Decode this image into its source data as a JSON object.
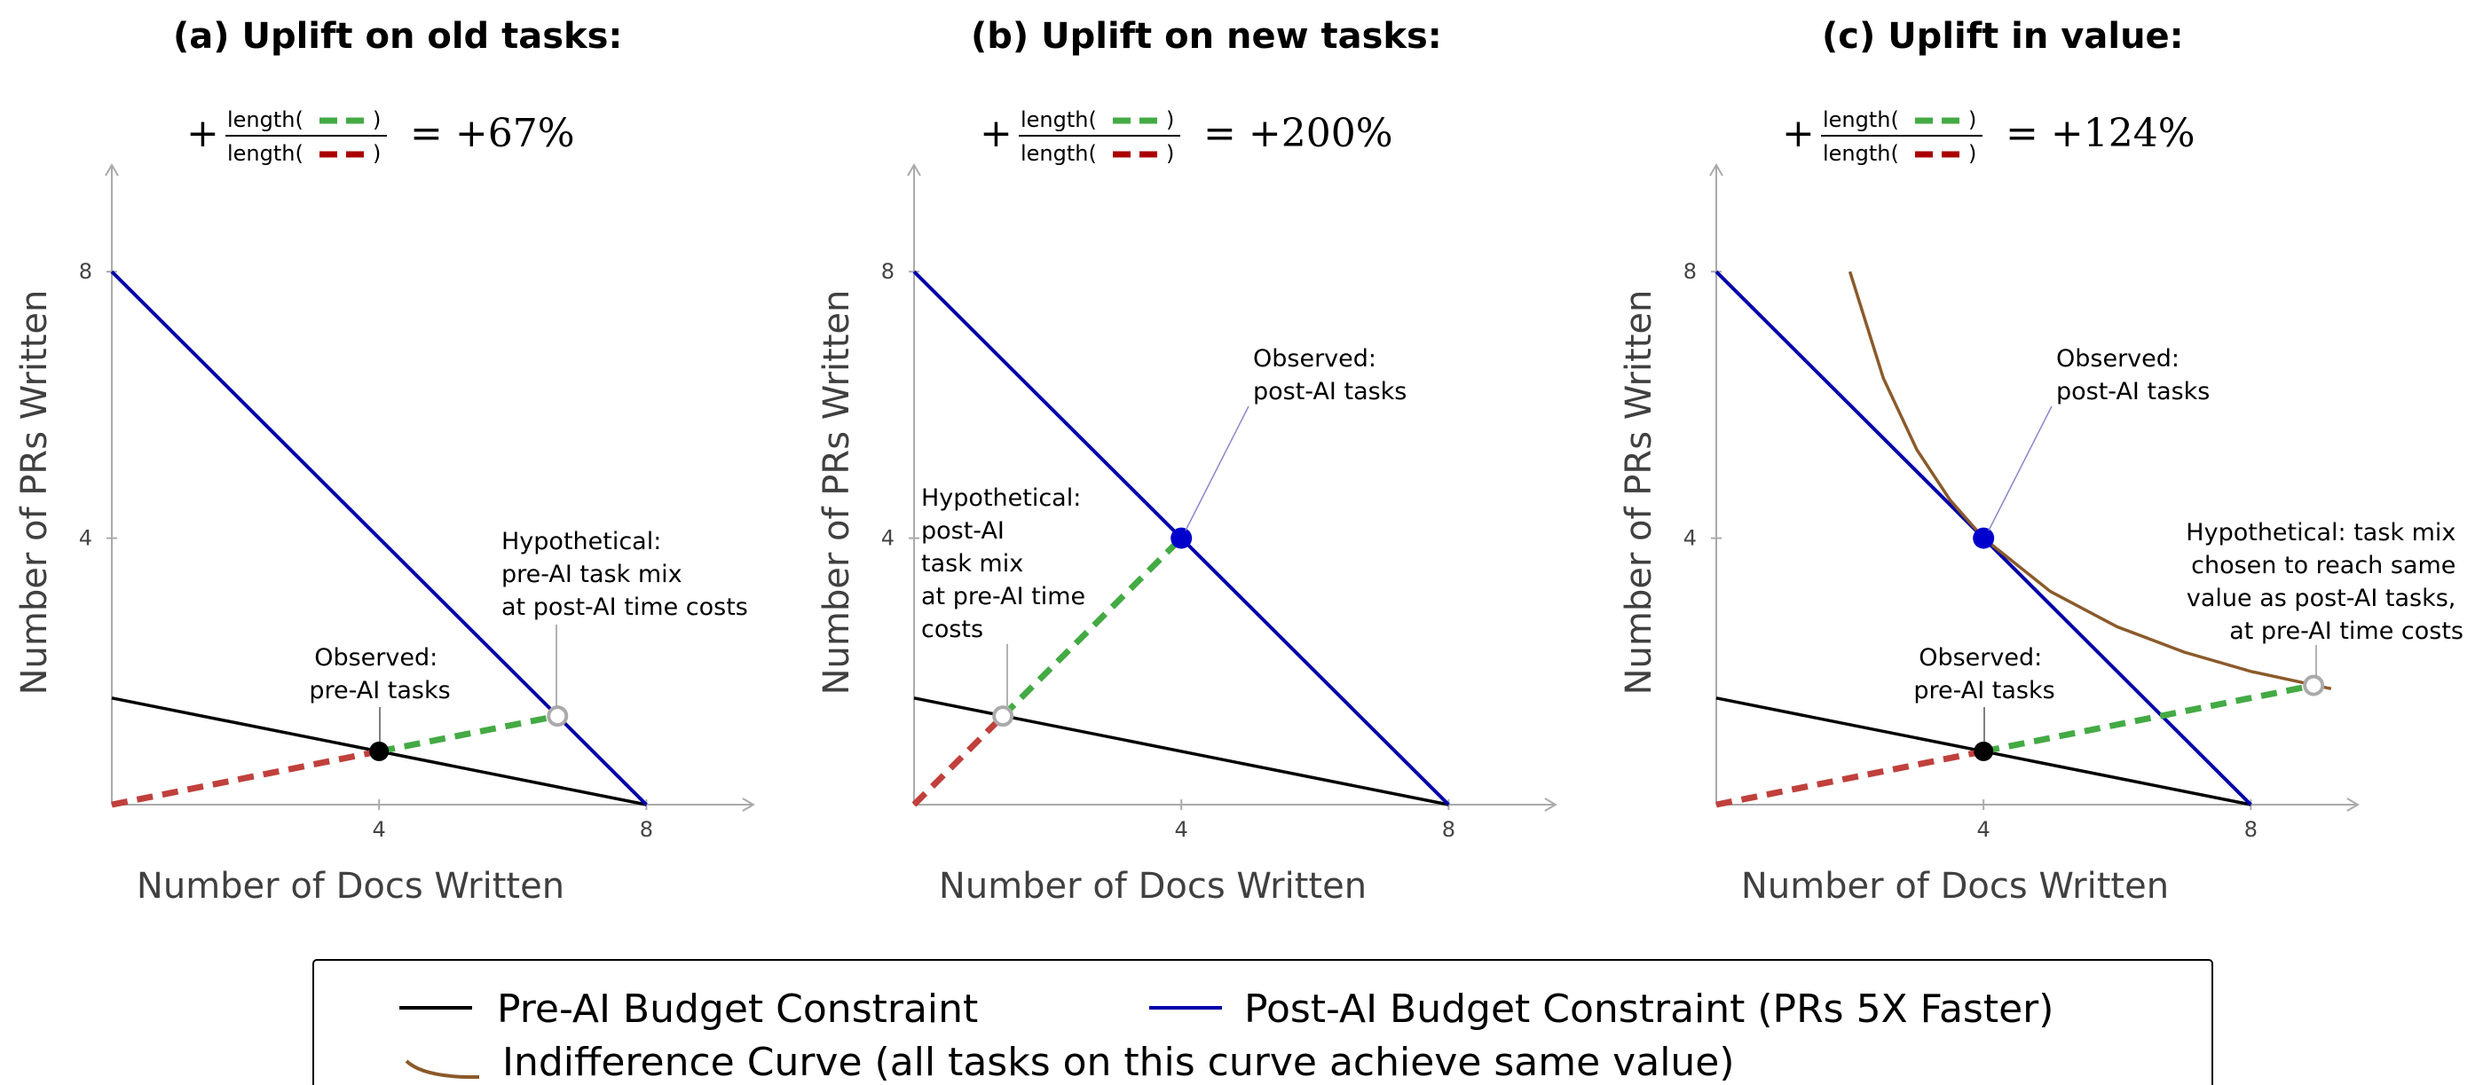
{
  "chart_data": [
    {
      "type": "line",
      "title": "(a) Uplift on old tasks:",
      "formula": {
        "prefix": "+",
        "numerator": "length(",
        "denominator": "length(",
        "close": ")",
        "result": "= +67%"
      },
      "xlabel": "Number of Docs Written",
      "ylabel": "Number of PRs Written",
      "xticks": [
        "4",
        "8"
      ],
      "yticks": [
        "4",
        "8"
      ],
      "xlim": [
        0,
        9.6
      ],
      "ylim": [
        0,
        9.6
      ],
      "series": [
        {
          "name": "Pre-AI Budget Constraint",
          "color": "#000000",
          "x": [
            0,
            8
          ],
          "y": [
            1.6,
            0
          ]
        },
        {
          "name": "Post-AI Budget Constraint (PRs 5X Faster)",
          "color": "#0000aa",
          "x": [
            0,
            8
          ],
          "y": [
            8,
            0
          ]
        },
        {
          "color": "#c0403c",
          "dashed": true,
          "x": [
            0,
            4
          ],
          "y": [
            0,
            0.8
          ]
        },
        {
          "color": "#44aa44",
          "dashed": true,
          "x": [
            4,
            6.67
          ],
          "y": [
            0.8,
            1.33
          ]
        }
      ],
      "points": [
        {
          "x": 4,
          "y": 0.8,
          "style": "black"
        },
        {
          "x": 6.67,
          "y": 1.33,
          "style": "hollow"
        }
      ],
      "annotations": [
        {
          "lines": [
            "Observed:",
            "pre-AI tasks"
          ]
        },
        {
          "lines": [
            "Hypothetical:",
            "pre-AI task mix",
            "at post-AI time costs"
          ]
        }
      ]
    },
    {
      "type": "line",
      "title": "(b) Uplift on new tasks:",
      "formula": {
        "prefix": "+",
        "numerator": "length(",
        "denominator": "length(",
        "close": ")",
        "result": "= +200%"
      },
      "xlabel": "Number of Docs Written",
      "ylabel": "Number of PRs Written",
      "xticks": [
        "4",
        "8"
      ],
      "yticks": [
        "4",
        "8"
      ],
      "xlim": [
        0,
        9.6
      ],
      "ylim": [
        0,
        9.6
      ],
      "series": [
        {
          "name": "Pre-AI Budget Constraint",
          "color": "#000000",
          "x": [
            0,
            8
          ],
          "y": [
            1.6,
            0
          ]
        },
        {
          "name": "Post-AI Budget Constraint (PRs 5X Faster)",
          "color": "#0000aa",
          "x": [
            0,
            8
          ],
          "y": [
            8,
            0
          ]
        },
        {
          "color": "#c0403c",
          "dashed": true,
          "x": [
            0,
            1.33
          ],
          "y": [
            0,
            1.33
          ]
        },
        {
          "color": "#44aa44",
          "dashed": true,
          "x": [
            1.33,
            4
          ],
          "y": [
            1.33,
            4
          ]
        }
      ],
      "points": [
        {
          "x": 4,
          "y": 4,
          "style": "blue"
        },
        {
          "x": 1.33,
          "y": 1.33,
          "style": "hollow"
        }
      ],
      "annotations": [
        {
          "lines": [
            "Observed:",
            "post-AI tasks"
          ]
        },
        {
          "lines": [
            "Hypothetical:",
            "post-AI",
            "task mix",
            "at pre-AI time",
            "costs"
          ]
        }
      ]
    },
    {
      "type": "line",
      "title": "(c) Uplift in value:",
      "formula": {
        "prefix": "+",
        "numerator": "length(",
        "denominator": "length(",
        "close": ")",
        "result": "= +124%"
      },
      "xlabel": "Number of Docs Written",
      "ylabel": "Number of PRs Written",
      "xticks": [
        "4",
        "8"
      ],
      "yticks": [
        "4",
        "8"
      ],
      "xlim": [
        0,
        9.6
      ],
      "ylim": [
        0,
        9.6
      ],
      "series": [
        {
          "name": "Pre-AI Budget Constraint",
          "color": "#000000",
          "x": [
            0,
            8
          ],
          "y": [
            1.6,
            0
          ]
        },
        {
          "name": "Post-AI Budget Constraint (PRs 5X Faster)",
          "color": "#0000aa",
          "x": [
            0,
            8
          ],
          "y": [
            8,
            0
          ]
        },
        {
          "name": "Indifference Curve (all tasks on this curve achieve same value)",
          "color": "#8b5a2b",
          "x": [
            2,
            2.5,
            3,
            3.5,
            4,
            5,
            6,
            7,
            8,
            9.2
          ],
          "y": [
            8,
            6.4,
            5.33,
            4.57,
            4,
            3.2,
            2.67,
            2.29,
            2,
            1.74
          ]
        },
        {
          "color": "#c0403c",
          "dashed": true,
          "x": [
            0,
            4
          ],
          "y": [
            0,
            0.8
          ]
        },
        {
          "color": "#44aa44",
          "dashed": true,
          "x": [
            4,
            8.94
          ],
          "y": [
            0.8,
            1.79
          ]
        }
      ],
      "points": [
        {
          "x": 4,
          "y": 0.8,
          "style": "black"
        },
        {
          "x": 4,
          "y": 4,
          "style": "blue"
        },
        {
          "x": 8.94,
          "y": 1.79,
          "style": "hollow"
        }
      ],
      "annotations": [
        {
          "lines": [
            "Observed:",
            "post-AI tasks"
          ]
        },
        {
          "lines": [
            "Hypothetical: task mix",
            "chosen to reach same",
            "value as post-AI tasks,",
            "at pre-AI time costs"
          ]
        },
        {
          "lines": [
            "Observed:",
            "pre-AI tasks"
          ]
        }
      ]
    }
  ],
  "legend": {
    "items": [
      {
        "label": "Pre-AI Budget Constraint",
        "color": "#000000"
      },
      {
        "label": "Post-AI Budget Constraint (PRs 5X Faster)",
        "color": "#0000aa"
      },
      {
        "label": "Indifference Curve (all tasks on this curve achieve same value)",
        "color": "#8b5a2b"
      }
    ]
  },
  "colors": {
    "green": "#44aa44",
    "red": "#c0403c",
    "blue": "#0000aa",
    "brown": "#8b5a2b"
  }
}
